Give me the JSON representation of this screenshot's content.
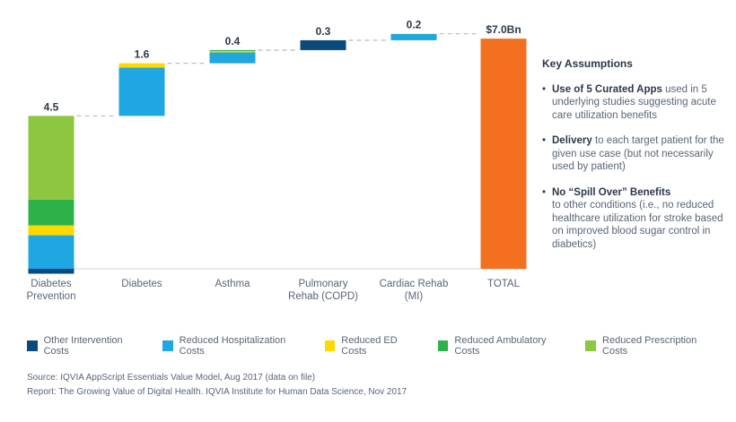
{
  "chart_data": {
    "type": "bar",
    "subtype": "waterfall",
    "categories": [
      "Diabetes Prevention",
      "Diabetes",
      "Asthma",
      "Pulmonary Rehab (COPD)",
      "Cardiac Rehab (MI)",
      "TOTAL"
    ],
    "category_lines": [
      [
        "Diabetes",
        "Prevention"
      ],
      [
        "Diabetes"
      ],
      [
        "Asthma"
      ],
      [
        "Pulmonary",
        "Rehab (COPD)"
      ],
      [
        "Cardiac Rehab",
        "(MI)"
      ],
      [
        "TOTAL"
      ]
    ],
    "value_labels": [
      "4.5",
      "1.6",
      "0.4",
      "0.3",
      "0.2",
      "$7.0Bn"
    ],
    "values": [
      4.5,
      1.6,
      0.4,
      0.3,
      0.2,
      7.0
    ],
    "unit": "$Bn",
    "series": [
      {
        "name": "Other Intervention Costs",
        "color": "#0b4a7c",
        "values": [
          -0.15,
          0,
          0,
          0.3,
          0,
          0
        ]
      },
      {
        "name": "Reduced Hospitalization Costs",
        "color": "#1fa7e1",
        "values": [
          1.02,
          1.47,
          0.33,
          0,
          0.19,
          0
        ]
      },
      {
        "name": "Reduced ED Costs",
        "color": "#ffd800",
        "values": [
          0.3,
          0.13,
          0.04,
          0,
          0.01,
          0
        ]
      },
      {
        "name": "Reduced Ambulatory Costs",
        "color": "#2db24a",
        "values": [
          0.78,
          0,
          0.03,
          0,
          0,
          0
        ]
      },
      {
        "name": "Reduced Prescription Costs",
        "color": "#8dc63f",
        "values": [
          2.55,
          0,
          0,
          0,
          0,
          0
        ]
      }
    ],
    "total": {
      "label": "TOTAL",
      "value": 7.0,
      "color": "#f37021"
    },
    "ylim": [
      0,
      7.0
    ],
    "grid": false,
    "legend_position": "bottom"
  },
  "assumptions": {
    "title": "Key Assumptions",
    "items": [
      {
        "bold": "Use of 5 Curated Apps",
        "text": " used in 5 underlying studies suggesting acute care utilization benefits"
      },
      {
        "bold": "Delivery",
        "text": " to each target patient for the given use case (but not necessarily used by patient)"
      },
      {
        "bold": "No “Spill Over” Benefits",
        "text": " to other conditions (i.e., no reduced healthcare utilization for stroke based on improved blood sugar control in diabetics)"
      }
    ]
  },
  "footer": {
    "source": "Source: IQVIA AppScript Essentials Value Model, Aug 2017 (data on file)",
    "report": "Report: The Growing Value of Digital Health. IQVIA Institute for Human Data Science, Nov 2017"
  }
}
